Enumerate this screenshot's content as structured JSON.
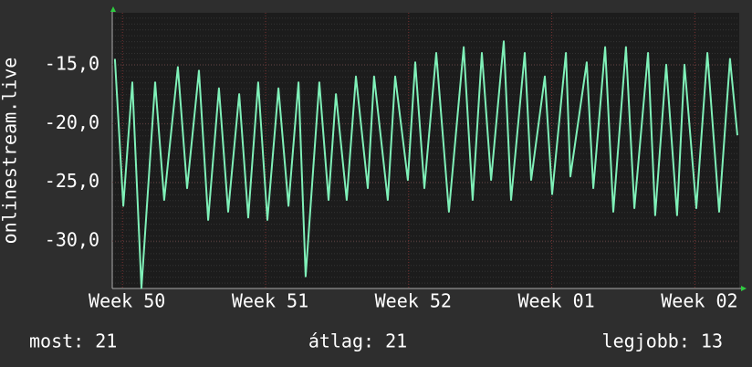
{
  "chart_data": {
    "type": "line",
    "y_label": "onlinestream.live",
    "color": "#7ff0b8",
    "x": [
      0.13,
      0.54,
      0.98,
      1.43,
      2.1,
      2.54,
      3.21,
      3.66,
      4.24,
      4.69,
      5.22,
      5.67,
      6.21,
      6.65,
      7.14,
      7.59,
      8.13,
      8.62,
      9.11,
      9.46,
      10.13,
      10.58,
      10.94,
      11.47,
      11.92,
      12.5,
      12.81,
      13.48,
      13.84,
      14.46,
      14.82,
      15.27,
      15.85,
      16.47,
      17.19,
      17.63,
      18.08,
      18.53,
      19.15,
      19.51,
      20.18,
      20.49,
      21.16,
      21.52,
      22.19,
      22.41,
      23.21,
      23.53,
      24.11,
      24.51,
      25.13,
      25.54,
      26.21,
      26.56,
      27.1,
      27.63,
      27.99,
      28.57,
      29.11,
      29.69,
      30.22,
      30.58
    ],
    "values": [
      -14.5,
      -27,
      -16.5,
      -34,
      -16.5,
      -26.5,
      -15.2,
      -25.5,
      -15.5,
      -28.2,
      -17,
      -27.5,
      -17.5,
      -28,
      -16.5,
      -28.2,
      -17,
      -27,
      -16.5,
      -33,
      -16.5,
      -26.5,
      -17.5,
      -26.5,
      -16,
      -25.5,
      -16,
      -26.5,
      -16,
      -24.8,
      -14.8,
      -25.5,
      -14,
      -27.5,
      -13.5,
      -26.5,
      -14,
      -24.8,
      -13,
      -26.5,
      -14,
      -24.8,
      -16,
      -26,
      -14,
      -24.5,
      -14.8,
      -25.5,
      -13.5,
      -27.5,
      -13.5,
      -27.2,
      -14,
      -27.8,
      -15,
      -27.8,
      -15,
      -27.2,
      -14,
      -27.5,
      -14.5,
      -21
    ],
    "xlim": [
      0,
      30.67
    ],
    "xticks": [
      {
        "value": 0.5,
        "label": "Week 50"
      },
      {
        "value": 7.5,
        "label": "Week 51"
      },
      {
        "value": 14.5,
        "label": "Week 52"
      },
      {
        "value": 21.5,
        "label": "Week 01"
      },
      {
        "value": 28.5,
        "label": "Week 02"
      }
    ],
    "ylim": [
      -34.03,
      -10.58
    ],
    "yticks": [
      {
        "value": -15,
        "label": "-15,0"
      },
      {
        "value": -20,
        "label": "-20,0"
      },
      {
        "value": -25,
        "label": "-25,0"
      },
      {
        "value": -30,
        "label": "-30,0"
      }
    ],
    "grid": true,
    "summary": [
      "most: 21",
      "átlag: 21",
      "legjobb: 13"
    ]
  }
}
